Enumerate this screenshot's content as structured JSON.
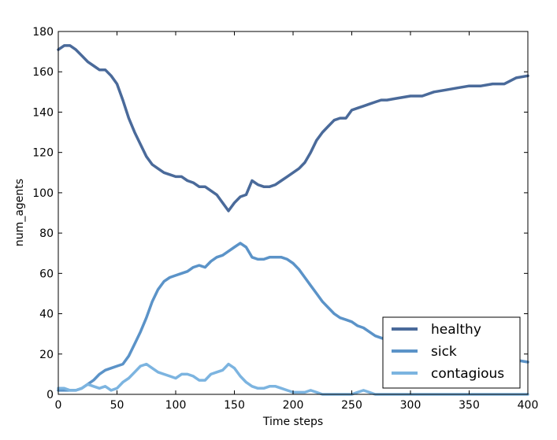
{
  "chart_data": {
    "type": "line",
    "xlabel": "Time steps",
    "ylabel": "num_agents",
    "xlim": [
      0,
      400
    ],
    "ylim": [
      0,
      180
    ],
    "xticks": [
      "0",
      "50",
      "100",
      "150",
      "200",
      "250",
      "300",
      "350",
      "400"
    ],
    "yticks": [
      "0",
      "20",
      "40",
      "60",
      "80",
      "100",
      "120",
      "140",
      "160",
      "180"
    ],
    "grid": false,
    "legend_position": "bottom-right",
    "series": [
      {
        "name": "healthy",
        "color": "#4a6a9a",
        "x": [
          0,
          5,
          10,
          15,
          20,
          25,
          30,
          35,
          40,
          45,
          50,
          55,
          60,
          65,
          70,
          75,
          80,
          85,
          90,
          95,
          100,
          105,
          110,
          115,
          120,
          125,
          130,
          135,
          140,
          145,
          150,
          155,
          160,
          165,
          170,
          175,
          180,
          185,
          190,
          195,
          200,
          205,
          210,
          215,
          220,
          225,
          230,
          235,
          240,
          245,
          250,
          255,
          260,
          265,
          270,
          275,
          280,
          290,
          300,
          310,
          320,
          330,
          340,
          350,
          360,
          370,
          380,
          390,
          400
        ],
        "y": [
          171,
          173,
          173,
          171,
          168,
          165,
          163,
          161,
          161,
          158,
          154,
          146,
          137,
          130,
          124,
          118,
          114,
          112,
          110,
          109,
          108,
          108,
          106,
          105,
          103,
          103,
          101,
          99,
          95,
          91,
          95,
          98,
          99,
          106,
          104,
          103,
          103,
          104,
          106,
          108,
          110,
          112,
          115,
          120,
          126,
          130,
          133,
          136,
          137,
          137,
          141,
          142,
          143,
          144,
          145,
          146,
          146,
          147,
          148,
          148,
          150,
          151,
          152,
          153,
          153,
          154,
          154,
          157,
          158
        ]
      },
      {
        "name": "sick",
        "color": "#5b93c8",
        "x": [
          0,
          5,
          10,
          15,
          20,
          25,
          30,
          35,
          40,
          45,
          50,
          55,
          60,
          65,
          70,
          75,
          80,
          85,
          90,
          95,
          100,
          105,
          110,
          115,
          120,
          125,
          130,
          135,
          140,
          145,
          150,
          155,
          160,
          165,
          170,
          175,
          180,
          185,
          190,
          195,
          200,
          205,
          210,
          215,
          220,
          225,
          230,
          235,
          240,
          245,
          250,
          255,
          260,
          265,
          270,
          275,
          280,
          290,
          300,
          310,
          320,
          330,
          340,
          350,
          360,
          370,
          380,
          390,
          400
        ],
        "y": [
          2,
          2,
          2,
          2,
          3,
          5,
          7,
          10,
          12,
          13,
          14,
          15,
          19,
          25,
          31,
          38,
          46,
          52,
          56,
          58,
          59,
          60,
          61,
          63,
          64,
          63,
          66,
          68,
          69,
          71,
          73,
          75,
          73,
          68,
          67,
          67,
          68,
          68,
          68,
          67,
          65,
          62,
          58,
          54,
          50,
          46,
          43,
          40,
          38,
          37,
          36,
          34,
          33,
          31,
          29,
          28,
          27,
          26,
          25,
          24,
          23,
          22,
          21,
          20,
          19,
          18,
          17,
          17,
          16
        ]
      },
      {
        "name": "contagious",
        "color": "#7cb4e0",
        "x": [
          0,
          5,
          10,
          15,
          20,
          25,
          30,
          35,
          40,
          45,
          50,
          55,
          60,
          65,
          70,
          75,
          80,
          85,
          90,
          95,
          100,
          105,
          110,
          115,
          120,
          125,
          130,
          135,
          140,
          145,
          150,
          155,
          160,
          165,
          170,
          175,
          180,
          185,
          190,
          195,
          200,
          205,
          210,
          215,
          220,
          225,
          230,
          235,
          240,
          245,
          250,
          255,
          260,
          265,
          270,
          275,
          280,
          290,
          300,
          310,
          320,
          330,
          340,
          350,
          360,
          370,
          380,
          390,
          400
        ],
        "y": [
          3,
          3,
          2,
          2,
          3,
          5,
          4,
          3,
          4,
          2,
          3,
          6,
          8,
          11,
          14,
          15,
          13,
          11,
          10,
          9,
          8,
          10,
          10,
          9,
          7,
          7,
          10,
          11,
          12,
          15,
          13,
          9,
          6,
          4,
          3,
          3,
          4,
          4,
          3,
          2,
          1,
          1,
          1,
          2,
          1,
          0,
          0,
          0,
          0,
          0,
          0,
          1,
          2,
          1,
          0,
          0,
          0,
          0,
          0,
          0,
          0,
          0,
          0,
          0,
          0,
          0,
          0,
          0,
          0
        ]
      }
    ]
  }
}
